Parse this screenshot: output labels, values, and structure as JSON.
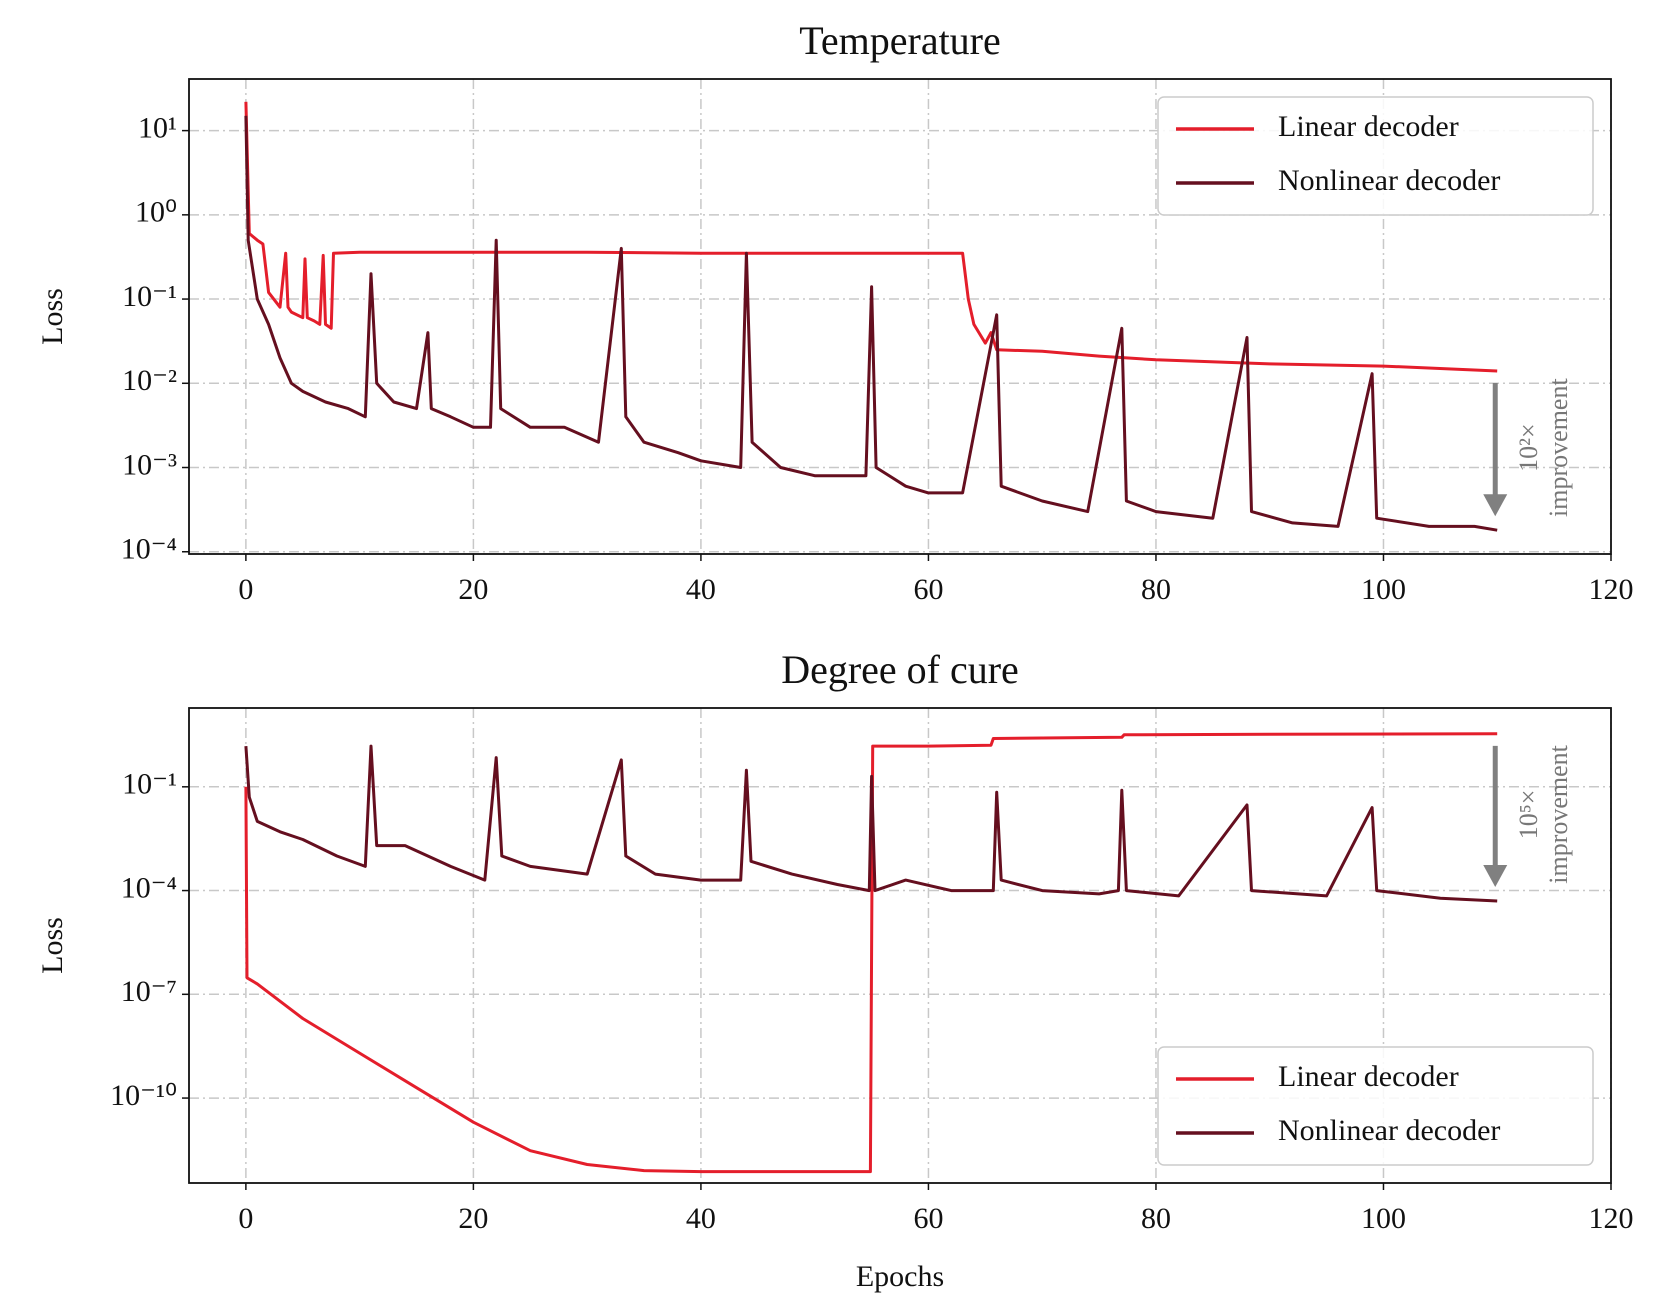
{
  "chart_data": [
    {
      "type": "line",
      "title": "Temperature",
      "ylabel": "Loss",
      "yscale": "log",
      "grid": true,
      "legend": "upper right",
      "xlim": [
        -5,
        120
      ],
      "xticks": [
        0,
        20,
        40,
        60,
        80,
        100,
        120
      ],
      "ylim": [
        9.4e-05,
        41
      ],
      "yticks": [
        {
          "value": 0.0001,
          "label": "10⁻⁴"
        },
        {
          "value": 0.001,
          "label": "10⁻³"
        },
        {
          "value": 0.01,
          "label": "10⁻²"
        },
        {
          "value": 0.1,
          "label": "10⁻¹"
        },
        {
          "value": 1,
          "label": "10⁰"
        },
        {
          "value": 10,
          "label": "10¹"
        }
      ],
      "annotation": [
        "10²×",
        "improvement"
      ],
      "series": [
        {
          "name": "Linear decoder",
          "color": "#e41e2b",
          "x": [
            0,
            0.3,
            1,
            1.5,
            2,
            3,
            3.5,
            3.7,
            4,
            5,
            5.2,
            5.4,
            6,
            6.5,
            6.8,
            7,
            7.5,
            7.7,
            10,
            20,
            30,
            40,
            50,
            60,
            63,
            63.5,
            64,
            65,
            65.5,
            66,
            70,
            75,
            80,
            90,
            100,
            110
          ],
          "values": [
            22,
            0.6,
            0.5,
            0.45,
            0.12,
            0.08,
            0.35,
            0.08,
            0.07,
            0.06,
            0.3,
            0.06,
            0.055,
            0.05,
            0.33,
            0.05,
            0.045,
            0.35,
            0.36,
            0.36,
            0.36,
            0.35,
            0.35,
            0.35,
            0.35,
            0.1,
            0.05,
            0.03,
            0.04,
            0.025,
            0.024,
            0.021,
            0.019,
            0.017,
            0.016,
            0.014
          ]
        },
        {
          "name": "Nonlinear decoder",
          "color": "#650f1f",
          "x": [
            0,
            0.2,
            1,
            2,
            3,
            4,
            5,
            7,
            9,
            10.5,
            11,
            11.5,
            13,
            15,
            16,
            16.3,
            18,
            20,
            21.5,
            22,
            22.4,
            25,
            28,
            31,
            33,
            33.4,
            35,
            38,
            40,
            43.5,
            44,
            44.5,
            47,
            50,
            54.5,
            55,
            55.4,
            58,
            60,
            63,
            66,
            66.4,
            70,
            74,
            77,
            77.4,
            80,
            85,
            88,
            88.4,
            92,
            96,
            99,
            99.4,
            104,
            108,
            110
          ],
          "values": [
            15,
            0.5,
            0.1,
            0.05,
            0.02,
            0.01,
            0.008,
            0.006,
            0.005,
            0.004,
            0.2,
            0.01,
            0.006,
            0.005,
            0.04,
            0.005,
            0.004,
            0.003,
            0.003,
            0.5,
            0.005,
            0.003,
            0.003,
            0.002,
            0.4,
            0.004,
            0.002,
            0.0015,
            0.0012,
            0.001,
            0.35,
            0.002,
            0.001,
            0.0008,
            0.0008,
            0.14,
            0.001,
            0.0006,
            0.0005,
            0.0005,
            0.065,
            0.0006,
            0.0004,
            0.0003,
            0.045,
            0.0004,
            0.0003,
            0.00025,
            0.035,
            0.0003,
            0.00022,
            0.0002,
            0.013,
            0.00025,
            0.0002,
            0.0002,
            0.00018
          ]
        }
      ]
    },
    {
      "type": "line",
      "title": "Degree of cure",
      "xlabel": "Epochs",
      "ylabel": "Loss",
      "yscale": "log",
      "grid": true,
      "legend": "lower right",
      "xlim": [
        -5,
        120
      ],
      "xticks": [
        0,
        20,
        40,
        60,
        80,
        100,
        120
      ],
      "ylim": [
        3.5e-13,
        19
      ],
      "yticks": [
        {
          "value": 1e-10,
          "label": "10⁻¹⁰"
        },
        {
          "value": 1e-07,
          "label": "10⁻⁷"
        },
        {
          "value": 0.0001,
          "label": "10⁻⁴"
        },
        {
          "value": 0.1,
          "label": "10⁻¹"
        }
      ],
      "annotation": [
        "10⁵×",
        "improvement"
      ],
      "series": [
        {
          "name": "Linear decoder",
          "color": "#e41e2b",
          "x": [
            0,
            0.1,
            1,
            5,
            10,
            15,
            20,
            25,
            30,
            35,
            40,
            50,
            54.9,
            55.1,
            60,
            65.5,
            65.7,
            77,
            77.2,
            90,
            110
          ],
          "values": [
            0.1,
            3e-07,
            2e-07,
            2e-08,
            2e-09,
            2e-10,
            2e-11,
            3e-12,
            1.2e-12,
            8e-13,
            7.5e-13,
            7.5e-13,
            7.5e-13,
            1.5,
            1.5,
            1.6,
            2.5,
            2.7,
            3.2,
            3.3,
            3.4
          ]
        },
        {
          "name": "Nonlinear decoder",
          "color": "#650f1f",
          "x": [
            0,
            0.3,
            1,
            3,
            5,
            8,
            10.5,
            11,
            11.5,
            14,
            18,
            21,
            22,
            22.5,
            25,
            30,
            33,
            33.4,
            36,
            40,
            43.5,
            44,
            44.4,
            48,
            52,
            54.8,
            55,
            55.3,
            58,
            62,
            65.7,
            66,
            66.4,
            70,
            75,
            76.7,
            77,
            77.4,
            82,
            88,
            88.4,
            95,
            99,
            99.4,
            105,
            110
          ],
          "values": [
            1.5,
            0.05,
            0.01,
            0.005,
            0.003,
            0.001,
            0.0005,
            1.5,
            0.002,
            0.002,
            0.0005,
            0.0002,
            0.7,
            0.001,
            0.0005,
            0.0003,
            0.6,
            0.001,
            0.0003,
            0.0002,
            0.0002,
            0.3,
            0.0007,
            0.0003,
            0.00015,
            0.0001,
            0.2,
            0.0001,
            0.0002,
            0.0001,
            0.0001,
            0.07,
            0.0002,
            0.0001,
            8e-05,
            0.0001,
            0.08,
            0.0001,
            7e-05,
            0.03,
            0.0001,
            7e-05,
            0.025,
            0.0001,
            6e-05,
            5e-05
          ]
        }
      ]
    }
  ]
}
